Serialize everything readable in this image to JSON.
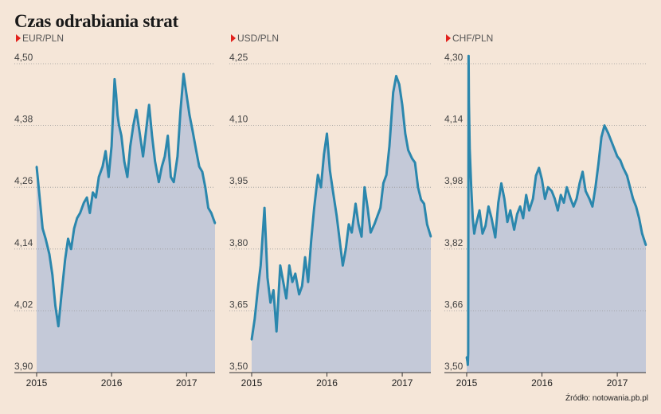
{
  "title": "Czas odrabiania strat",
  "source": "Źródło: notowania.pb.pl",
  "colors": {
    "line": "#2b87ad",
    "fill": "#c4c9d8",
    "grid": "#999999",
    "marker": "#e2211c",
    "background": "#f5e6d8"
  },
  "chart_data": [
    {
      "type": "area",
      "series_label": "EUR/PLN",
      "ylim": [
        3.9,
        4.5
      ],
      "yticks": [
        "4,50",
        "4,38",
        "4,26",
        "4,14",
        "4,02",
        "3,90"
      ],
      "ytick_values": [
        4.5,
        4.38,
        4.26,
        4.14,
        4.02,
        3.9
      ],
      "xlim": [
        2015.0,
        2017.38
      ],
      "xticks": [
        "2015",
        "2016",
        "2017"
      ],
      "xtick_values": [
        2015.0,
        2016.0,
        2017.0
      ],
      "grid": true,
      "x": [
        2015.0,
        2015.04,
        2015.08,
        2015.12,
        2015.17,
        2015.21,
        2015.25,
        2015.29,
        2015.33,
        2015.38,
        2015.42,
        2015.46,
        2015.5,
        2015.54,
        2015.58,
        2015.63,
        2015.67,
        2015.71,
        2015.75,
        2015.79,
        2015.83,
        2015.88,
        2015.92,
        2015.96,
        2016.0,
        2016.04,
        2016.06,
        2016.08,
        2016.1,
        2016.13,
        2016.17,
        2016.21,
        2016.25,
        2016.29,
        2016.33,
        2016.38,
        2016.42,
        2016.46,
        2016.5,
        2016.54,
        2016.58,
        2016.63,
        2016.67,
        2016.71,
        2016.75,
        2016.79,
        2016.83,
        2016.88,
        2016.92,
        2016.96,
        2017.0,
        2017.04,
        2017.08,
        2017.13,
        2017.17,
        2017.21,
        2017.25,
        2017.29,
        2017.33,
        2017.38
      ],
      "values": [
        4.3,
        4.24,
        4.18,
        4.16,
        4.13,
        4.09,
        4.03,
        3.99,
        4.05,
        4.12,
        4.16,
        4.14,
        4.18,
        4.2,
        4.21,
        4.23,
        4.24,
        4.21,
        4.25,
        4.24,
        4.28,
        4.3,
        4.33,
        4.28,
        4.34,
        4.47,
        4.44,
        4.4,
        4.38,
        4.36,
        4.31,
        4.28,
        4.34,
        4.38,
        4.41,
        4.36,
        4.32,
        4.37,
        4.42,
        4.36,
        4.31,
        4.27,
        4.3,
        4.32,
        4.36,
        4.28,
        4.27,
        4.32,
        4.41,
        4.48,
        4.44,
        4.4,
        4.37,
        4.33,
        4.3,
        4.29,
        4.26,
        4.22,
        4.21,
        4.19
      ]
    },
    {
      "type": "area",
      "series_label": "USD/PLN",
      "ylim": [
        3.5,
        4.25
      ],
      "yticks": [
        "4,25",
        "4,10",
        "3,95",
        "3,80",
        "3,65",
        "3,50"
      ],
      "ytick_values": [
        4.25,
        4.1,
        3.95,
        3.8,
        3.65,
        3.5
      ],
      "xlim": [
        2015.0,
        2017.38
      ],
      "xticks": [
        "2015",
        "2016",
        "2017"
      ],
      "xtick_values": [
        2015.0,
        2016.0,
        2017.0
      ],
      "grid": true,
      "x": [
        2015.0,
        2015.04,
        2015.08,
        2015.12,
        2015.17,
        2015.21,
        2015.25,
        2015.29,
        2015.33,
        2015.38,
        2015.42,
        2015.46,
        2015.5,
        2015.54,
        2015.58,
        2015.63,
        2015.67,
        2015.71,
        2015.75,
        2015.79,
        2015.83,
        2015.88,
        2015.92,
        2015.96,
        2016.0,
        2016.04,
        2016.08,
        2016.13,
        2016.17,
        2016.21,
        2016.25,
        2016.29,
        2016.33,
        2016.38,
        2016.42,
        2016.46,
        2016.5,
        2016.54,
        2016.58,
        2016.63,
        2016.67,
        2016.71,
        2016.75,
        2016.79,
        2016.83,
        2016.88,
        2016.92,
        2016.96,
        2017.0,
        2017.04,
        2017.08,
        2017.13,
        2017.17,
        2017.21,
        2017.25,
        2017.29,
        2017.33,
        2017.38
      ],
      "values": [
        3.58,
        3.63,
        3.7,
        3.76,
        3.9,
        3.73,
        3.67,
        3.7,
        3.6,
        3.76,
        3.72,
        3.68,
        3.76,
        3.72,
        3.74,
        3.69,
        3.71,
        3.78,
        3.72,
        3.82,
        3.9,
        3.98,
        3.95,
        4.03,
        4.08,
        3.99,
        3.94,
        3.88,
        3.82,
        3.76,
        3.8,
        3.86,
        3.84,
        3.91,
        3.86,
        3.83,
        3.95,
        3.9,
        3.84,
        3.86,
        3.88,
        3.9,
        3.96,
        3.98,
        4.05,
        4.18,
        4.22,
        4.2,
        4.15,
        4.08,
        4.04,
        4.02,
        4.01,
        3.95,
        3.92,
        3.91,
        3.86,
        3.83
      ]
    },
    {
      "type": "area",
      "series_label": "CHF/PLN",
      "ylim": [
        3.5,
        4.3
      ],
      "yticks": [
        "4,30",
        "4,14",
        "3,98",
        "3,82",
        "3,66",
        "3,50"
      ],
      "ytick_values": [
        4.3,
        4.14,
        3.98,
        3.82,
        3.66,
        3.5
      ],
      "xlim": [
        2015.0,
        2017.38
      ],
      "xticks": [
        "2015",
        "2016",
        "2017"
      ],
      "xtick_values": [
        2015.0,
        2016.0,
        2017.0
      ],
      "grid": true,
      "x": [
        2015.0,
        2015.01,
        2015.015,
        2015.02,
        2015.025,
        2015.03,
        2015.04,
        2015.06,
        2015.08,
        2015.1,
        2015.12,
        2015.17,
        2015.21,
        2015.25,
        2015.29,
        2015.33,
        2015.38,
        2015.42,
        2015.46,
        2015.5,
        2015.54,
        2015.58,
        2015.63,
        2015.67,
        2015.71,
        2015.75,
        2015.79,
        2015.83,
        2015.88,
        2015.92,
        2015.96,
        2016.0,
        2016.04,
        2016.08,
        2016.13,
        2016.17,
        2016.21,
        2016.25,
        2016.29,
        2016.33,
        2016.38,
        2016.42,
        2016.46,
        2016.5,
        2016.54,
        2016.58,
        2016.63,
        2016.67,
        2016.71,
        2016.75,
        2016.79,
        2016.83,
        2016.88,
        2016.92,
        2016.96,
        2017.0,
        2017.04,
        2017.08,
        2017.13,
        2017.17,
        2017.21,
        2017.25,
        2017.29,
        2017.33,
        2017.38
      ],
      "values": [
        3.54,
        3.53,
        3.52,
        3.55,
        4.32,
        4.2,
        4.08,
        3.98,
        3.9,
        3.86,
        3.88,
        3.92,
        3.86,
        3.88,
        3.93,
        3.9,
        3.85,
        3.94,
        3.99,
        3.95,
        3.89,
        3.92,
        3.87,
        3.91,
        3.93,
        3.9,
        3.96,
        3.92,
        3.95,
        4.01,
        4.03,
        4.0,
        3.95,
        3.98,
        3.97,
        3.95,
        3.92,
        3.96,
        3.94,
        3.98,
        3.95,
        3.93,
        3.95,
        3.99,
        4.02,
        3.97,
        3.95,
        3.93,
        3.98,
        4.04,
        4.11,
        4.14,
        4.12,
        4.1,
        4.08,
        4.06,
        4.05,
        4.03,
        4.01,
        3.98,
        3.95,
        3.93,
        3.9,
        3.86,
        3.83
      ]
    }
  ]
}
